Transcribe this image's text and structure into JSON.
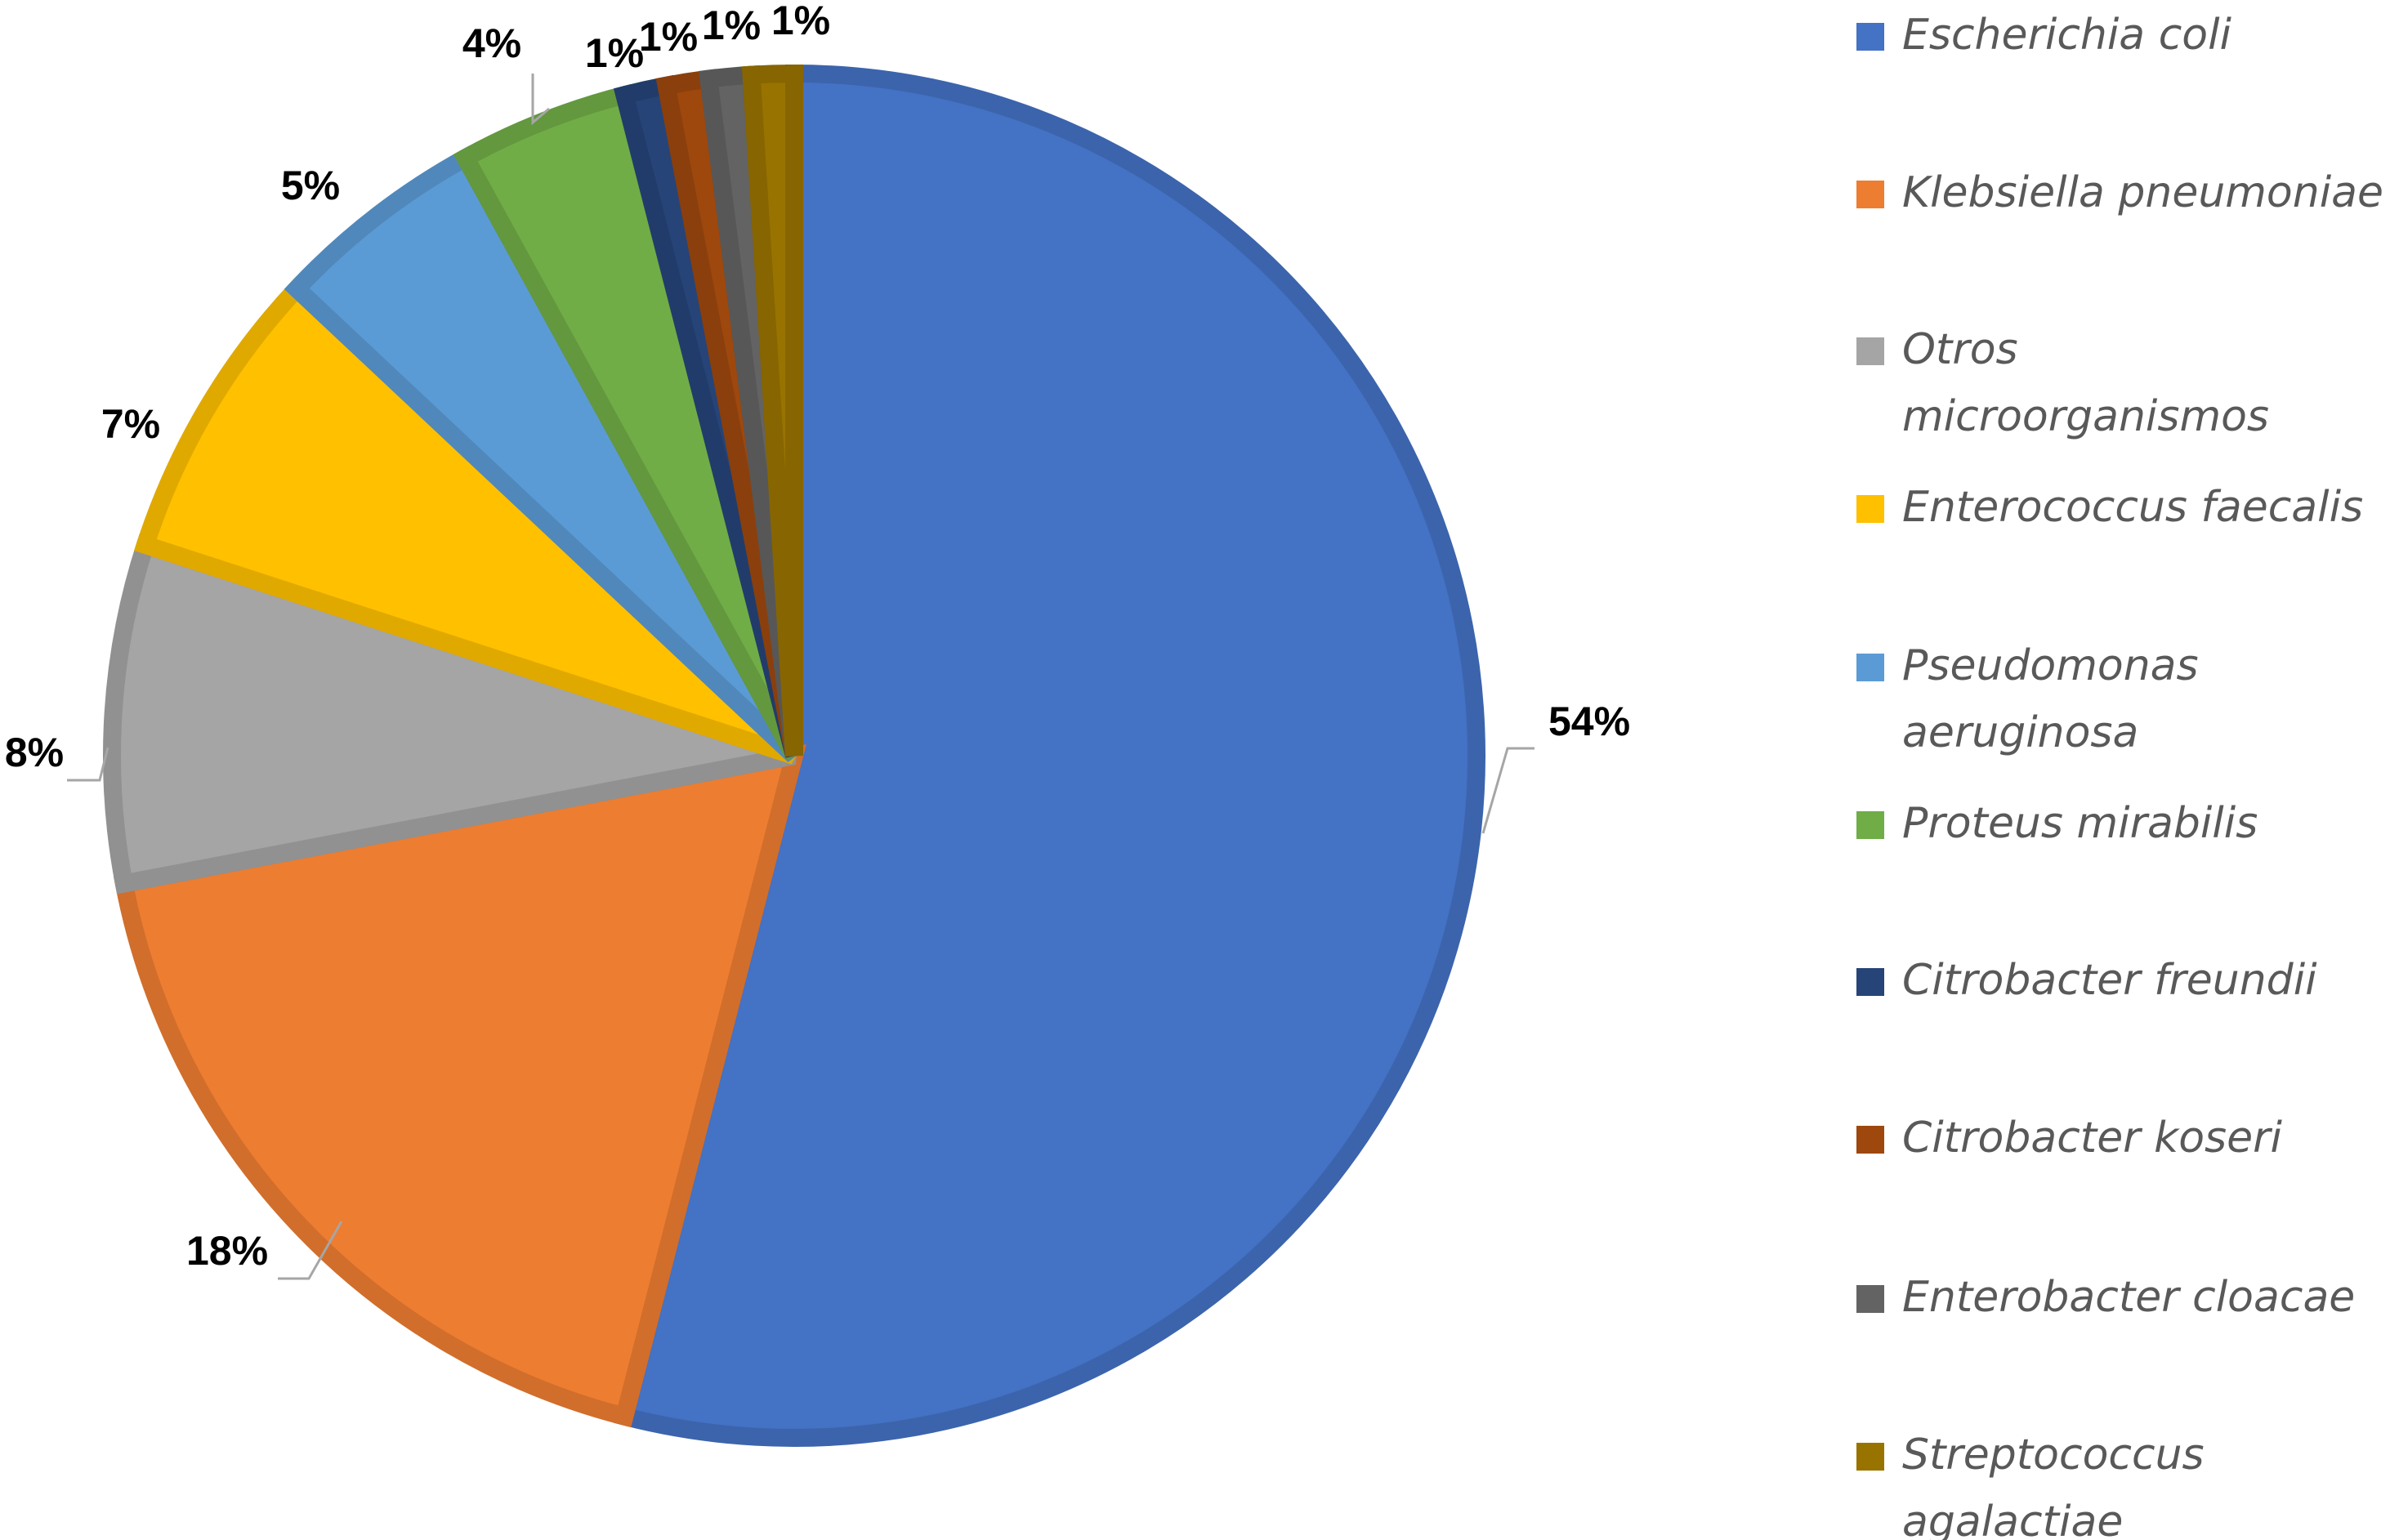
{
  "chart_data": {
    "type": "pie",
    "title": "",
    "legend_position": "right",
    "slices": [
      {
        "label": "Escherichia coli",
        "value": 54,
        "display": "54%",
        "color": "#4472C4"
      },
      {
        "label": "Klebsiella pneumoniae",
        "value": 18,
        "display": "18%",
        "color": "#ED7D31"
      },
      {
        "label": "Otros microorganismos",
        "value": 8,
        "display": "8%",
        "color": "#A5A5A5"
      },
      {
        "label": "Enterococcus faecalis",
        "value": 7,
        "display": "7%",
        "color": "#FFC000"
      },
      {
        "label": "Pseudomonas aeruginosa",
        "value": 5,
        "display": "5%",
        "color": "#5B9BD5"
      },
      {
        "label": "Proteus mirabilis",
        "value": 4,
        "display": "4%",
        "color": "#70AD47"
      },
      {
        "label": "Citrobacter freundii",
        "value": 1,
        "display": "1%",
        "color": "#264478"
      },
      {
        "label": "Citrobacter koseri",
        "value": 1,
        "display": "1%",
        "color": "#9E480E"
      },
      {
        "label": "Enterobacter cloacae",
        "value": 1,
        "display": "1%",
        "color": "#636363"
      },
      {
        "label": "Streptococcus agalactiae",
        "value": 1,
        "display": "1%",
        "color": "#997300"
      }
    ]
  }
}
